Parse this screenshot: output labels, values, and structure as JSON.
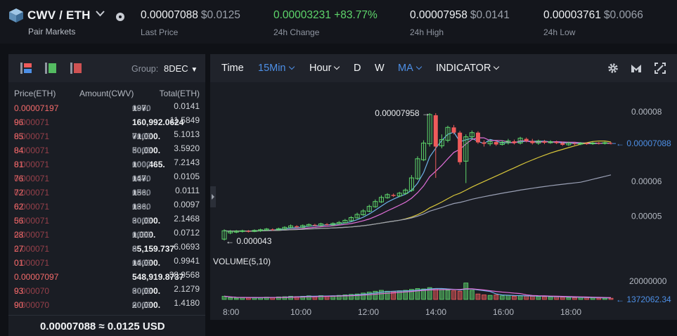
{
  "header": {
    "pair": "CWV / ETH",
    "pair_sub": "Pair Markets",
    "stats": [
      {
        "value": "0.00007088",
        "usd": "$0.0125",
        "label": "Last Price",
        "green": false
      },
      {
        "value": "0.00003231 +83.77%",
        "usd": "",
        "label": "24h Change",
        "green": true
      },
      {
        "value": "0.00007958",
        "usd": "$0.0141",
        "label": "24h High",
        "green": false
      },
      {
        "value": "0.00003761",
        "usd": "$0.0066",
        "label": "24h Low",
        "green": false
      }
    ]
  },
  "book": {
    "group_label": "Group:",
    "group_value": "8DEC",
    "headers": {
      "price": "Price(ETH)",
      "amount": "Amount(CWV)",
      "total": "Total(ETH)"
    },
    "rows": [
      {
        "p1": "",
        "p2": "0.00007197",
        "amt": "197.",
        "dec": "0000",
        "total": "0.0141"
      },
      {
        "p1": "0.000071",
        "p2": "96",
        "amt": "160,992.0624",
        "dec": "",
        "total": "11.5849"
      },
      {
        "p1": "0.000071",
        "p2": "85",
        "amt": "71,000.",
        "dec": "0000",
        "total": "5.1013"
      },
      {
        "p1": "0.000071",
        "p2": "84",
        "amt": "50,000.",
        "dec": "0000",
        "total": "3.5920"
      },
      {
        "p1": "0.000071",
        "p2": "81",
        "amt": "100,465.",
        "dec": "0000",
        "total": "7.2143"
      },
      {
        "p1": "0.000071",
        "p2": "76",
        "amt": "147.",
        "dec": "0000",
        "total": "0.0105"
      },
      {
        "p1": "0.000071",
        "p2": "72",
        "amt": "156.",
        "dec": "0000",
        "total": "0.0111"
      },
      {
        "p1": "0.000071",
        "p2": "62",
        "amt": "136.",
        "dec": "0000",
        "total": "0.0097"
      },
      {
        "p1": "0.000071",
        "p2": "56",
        "amt": "30,000.",
        "dec": "0000",
        "total": "2.1468"
      },
      {
        "p1": "0.000071",
        "p2": "28",
        "amt": "1,000.",
        "dec": "0000",
        "total": "0.0712"
      },
      {
        "p1": "0.000071",
        "p2": "27",
        "amt": "85,159.737",
        "dec": "0",
        "total": "6.0693"
      },
      {
        "p1": "0.000071",
        "p2": "01",
        "amt": "14,000.",
        "dec": "0000",
        "total": "0.9941"
      },
      {
        "p1": "",
        "p2": "0.00007097",
        "amt": "548,919.8737",
        "dec": "",
        "total": "38.9568"
      },
      {
        "p1": "0.000070",
        "p2": "93",
        "amt": "30,000.",
        "dec": "0000",
        "total": "2.1279"
      },
      {
        "p1": "0.000070",
        "p2": "90",
        "amt": "20,000.",
        "dec": "0000",
        "total": "1.4180"
      }
    ],
    "footer": "0.00007088 ≈ 0.0125 USD"
  },
  "toolbar": {
    "time": "Time",
    "interval": "15Min",
    "hour": "Hour",
    "d": "D",
    "w": "W",
    "ma": "MA",
    "indicator": "INDICATOR",
    "icons": [
      "gear-icon",
      "chart-type-icon",
      "fullscreen-icon"
    ]
  },
  "colors": {
    "up": "#5ed66b",
    "down": "#ef5b5b",
    "accent": "#4d8fe6",
    "bg": "#1a1d24"
  },
  "chart_data": {
    "type": "candlestick",
    "price_axis_labels": [
      "0.00008",
      "0.00006",
      "0.00005"
    ],
    "price_axis_values": [
      8e-05,
      6e-05,
      5e-05
    ],
    "last_price_label": "0.00007088",
    "last_price": 7.088e-05,
    "high_marker": "0.00007958",
    "low_marker": "0.000043",
    "volume_title": "VOLUME(5,10)",
    "volume_axis_label": "20000000",
    "volume_last_label": "1372062.34",
    "x_ticks": [
      "8:00",
      "10:00",
      "12:00",
      "14:00",
      "16:00",
      "18:00"
    ],
    "ma_colors": [
      "#6fb3e8",
      "#e06fd8",
      "#d8c63a",
      "#9aa0b5"
    ],
    "candles": [
      [
        4.34e-05,
        4.58e-05,
        4.62e-05,
        4.3e-05
      ],
      [
        4.52e-05,
        4.56e-05,
        4.6e-05,
        4.48e-05
      ],
      [
        4.54e-05,
        4.57e-05,
        4.6e-05,
        4.51e-05
      ],
      [
        4.56e-05,
        4.58e-05,
        4.61e-05,
        4.53e-05
      ],
      [
        4.57e-05,
        4.56e-05,
        4.6e-05,
        4.53e-05
      ],
      [
        4.56e-05,
        4.59e-05,
        4.62e-05,
        4.54e-05
      ],
      [
        4.58e-05,
        4.61e-05,
        4.64e-05,
        4.55e-05
      ],
      [
        4.6e-05,
        4.63e-05,
        4.66e-05,
        4.58e-05
      ],
      [
        4.62e-05,
        4.61e-05,
        4.65e-05,
        4.58e-05
      ],
      [
        4.61e-05,
        4.64e-05,
        4.67e-05,
        4.59e-05
      ],
      [
        4.63e-05,
        4.68e-05,
        4.71e-05,
        4.61e-05
      ],
      [
        4.67e-05,
        4.72e-05,
        4.76e-05,
        4.65e-05
      ],
      [
        4.71e-05,
        4.68e-05,
        4.74e-05,
        4.66e-05
      ],
      [
        4.68e-05,
        4.73e-05,
        4.76e-05,
        4.66e-05
      ],
      [
        4.72e-05,
        4.76e-05,
        4.79e-05,
        4.7e-05
      ],
      [
        4.75e-05,
        4.73e-05,
        4.78e-05,
        4.71e-05
      ],
      [
        4.73e-05,
        4.78e-05,
        4.81e-05,
        4.71e-05
      ],
      [
        4.77e-05,
        4.75e-05,
        4.8e-05,
        4.73e-05
      ],
      [
        4.75e-05,
        4.79e-05,
        4.82e-05,
        4.72e-05
      ],
      [
        4.78e-05,
        4.82e-05,
        4.86e-05,
        4.76e-05
      ],
      [
        4.81e-05,
        4.88e-05,
        4.92e-05,
        4.79e-05
      ],
      [
        4.87e-05,
        4.96e-05,
        5e-05,
        4.85e-05
      ],
      [
        4.95e-05,
        5.05e-05,
        5.1e-05,
        4.93e-05
      ],
      [
        5.04e-05,
        5.15e-05,
        5.2e-05,
        5.01e-05
      ],
      [
        5.14e-05,
        5.28e-05,
        5.33e-05,
        5.11e-05
      ],
      [
        5.27e-05,
        5.42e-05,
        5.48e-05,
        5.24e-05
      ],
      [
        5.41e-05,
        5.54e-05,
        5.6e-05,
        5.38e-05
      ],
      [
        5.53e-05,
        5.62e-05,
        5.66e-05,
        5.5e-05
      ],
      [
        5.61e-05,
        5.58e-05,
        5.65e-05,
        5.55e-05
      ],
      [
        5.58e-05,
        5.66e-05,
        5.7e-05,
        5.55e-05
      ],
      [
        5.65e-05,
        5.75e-05,
        5.8e-05,
        5.62e-05
      ],
      [
        5.74e-05,
        6.1e-05,
        6.18e-05,
        5.7e-05
      ],
      [
        6.08e-05,
        6.65e-05,
        6.72e-05,
        6.04e-05
      ],
      [
        6.62e-05,
        7.1e-05,
        7.18e-05,
        6.58e-05
      ],
      [
        7.08e-05,
        7.92e-05,
        7.96e-05,
        7e-05
      ],
      [
        7.9e-05,
        7e-05,
        7.96e-05,
        6.1e-05
      ],
      [
        7.02e-05,
        7.2e-05,
        7.35e-05,
        6.95e-05
      ],
      [
        7.18e-05,
        7.55e-05,
        7.6e-05,
        7.12e-05
      ],
      [
        7.55e-05,
        7.4e-05,
        7.62e-05,
        7.35e-05
      ],
      [
        7.4e-05,
        6.55e-05,
        7.45e-05,
        6.48e-05
      ],
      [
        6.58e-05,
        7.28e-05,
        7.35e-05,
        5.95e-05
      ],
      [
        7.28e-05,
        7.4e-05,
        7.46e-05,
        7.2e-05
      ],
      [
        7.4e-05,
        7.12e-05,
        7.44e-05,
        7.08e-05
      ],
      [
        7.12e-05,
        7.08e-05,
        7.18e-05,
        7e-05
      ],
      [
        7.08e-05,
        7.14e-05,
        7.2e-05,
        7.02e-05
      ],
      [
        7.13e-05,
        7.06e-05,
        7.18e-05,
        7.02e-05
      ],
      [
        7.06e-05,
        7.12e-05,
        7.18e-05,
        7.03e-05
      ],
      [
        7.11e-05,
        7.16e-05,
        7.22e-05,
        7.06e-05
      ],
      [
        7.15e-05,
        7.1e-05,
        7.2e-05,
        7.06e-05
      ],
      [
        7.1e-05,
        7.24e-05,
        7.28e-05,
        7.06e-05
      ],
      [
        7.22e-05,
        7.16e-05,
        7.26e-05,
        7.12e-05
      ],
      [
        7.16e-05,
        7.1e-05,
        7.22e-05,
        7.06e-05
      ],
      [
        7.1e-05,
        7.16e-05,
        7.2e-05,
        7.05e-05
      ],
      [
        7.15e-05,
        7.11e-05,
        7.19e-05,
        7.07e-05
      ],
      [
        7.11e-05,
        7.14e-05,
        7.18e-05,
        7.08e-05
      ],
      [
        7.13e-05,
        7.1e-05,
        7.17e-05,
        7.07e-05
      ],
      [
        7.1e-05,
        7.05e-05,
        7.14e-05,
        7.02e-05
      ],
      [
        7.05e-05,
        7.1e-05,
        7.14e-05,
        7.02e-05
      ],
      [
        7.09e-05,
        7.07e-05,
        7.12e-05,
        7.04e-05
      ],
      [
        7.07e-05,
        7.1e-05,
        7.13e-05,
        7.04e-05
      ],
      [
        7.09e-05,
        7.08e-05,
        7.12e-05,
        7.05e-05
      ],
      [
        7.08e-05,
        7.1e-05,
        7.13e-05,
        7.05e-05
      ],
      [
        7.1e-05,
        7.09e-05,
        7.13e-05,
        7.06e-05
      ],
      [
        7.09e-05,
        7.11e-05,
        7.14e-05,
        7.06e-05
      ],
      [
        7.1e-05,
        7.09e-05,
        7.13e-05,
        7.06e-05
      ]
    ],
    "volumes": [
      3.5,
      2.0,
      1.5,
      2.0,
      1.8,
      2.2,
      2.0,
      2.5,
      2.2,
      2.8,
      3.0,
      3.5,
      3.2,
      3.5,
      4.0,
      3.5,
      4.2,
      3.8,
      4.0,
      4.5,
      5.0,
      5.5,
      6.0,
      7.0,
      8.0,
      9.0,
      10.0,
      9.0,
      8.5,
      9.5,
      10.0,
      11.0,
      12.0,
      11.5,
      13.0,
      12.0,
      11.0,
      10.0,
      9.5,
      9.0,
      18.0,
      10.0,
      6.0,
      5.0,
      4.5,
      5.0,
      4.0,
      4.5,
      3.5,
      4.0,
      3.8,
      3.5,
      3.2,
      3.0,
      2.8,
      3.0,
      2.5,
      2.2,
      2.0,
      2.4,
      2.0,
      1.8,
      1.6,
      1.5,
      1.37
    ]
  }
}
